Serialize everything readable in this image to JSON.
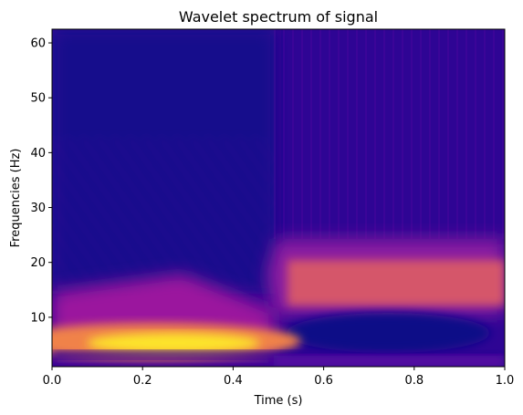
{
  "chart_data": {
    "type": "heatmap",
    "title": "Wavelet spectrum of signal",
    "xlabel": "Time (s)",
    "ylabel": "Frequencies (Hz)",
    "xlim": [
      0.0,
      1.0
    ],
    "ylim": [
      1,
      62.5
    ],
    "x_ticks": [
      "0.0",
      "0.2",
      "0.4",
      "0.6",
      "0.8",
      "1.0"
    ],
    "y_ticks": [
      "10",
      "20",
      "30",
      "40",
      "50",
      "60"
    ],
    "colormap": [
      "#0d0887",
      "#46039f",
      "#7201a8",
      "#9c179e",
      "#bd3786",
      "#d8576b",
      "#ed7953",
      "#fb9f3a",
      "#fdca26",
      "#f0f921"
    ],
    "grid": false,
    "regions": [
      {
        "name": "low-frequency band",
        "time": [
          0.0,
          0.5
        ],
        "frequency": [
          3,
          7
        ],
        "peak_frequency": 5,
        "intensity": "high"
      },
      {
        "name": "mid-frequency band",
        "time": [
          0.5,
          1.0
        ],
        "frequency": [
          11,
          20
        ],
        "peak_frequency": 14,
        "intensity": "medium"
      },
      {
        "name": "low-power trough",
        "time": [
          0.52,
          0.95
        ],
        "frequency": [
          3,
          9
        ],
        "intensity": "very low"
      }
    ]
  }
}
